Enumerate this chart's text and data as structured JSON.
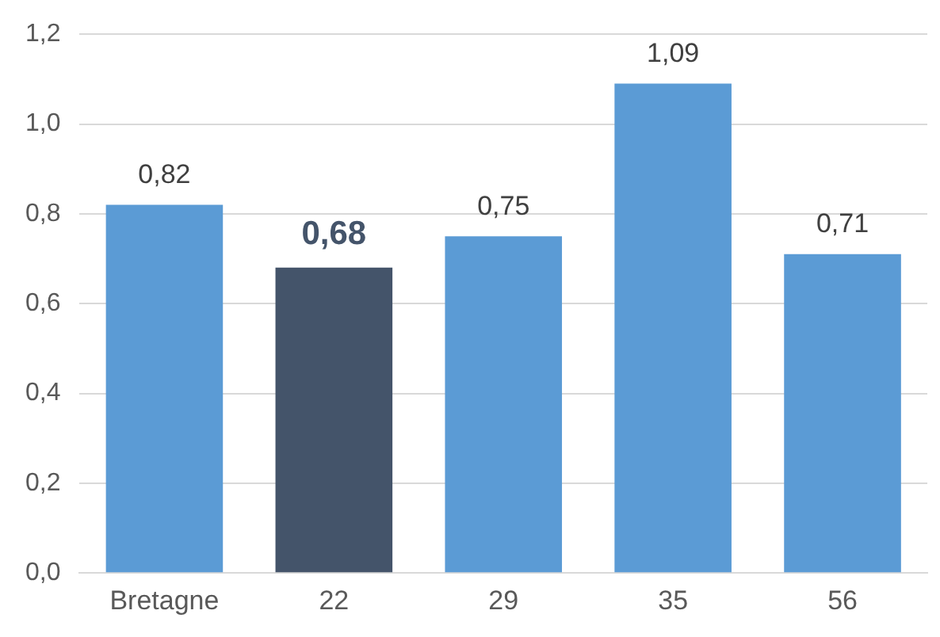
{
  "chart_data": {
    "type": "bar",
    "categories": [
      "Bretagne",
      "22",
      "29",
      "35",
      "56"
    ],
    "values": [
      0.82,
      0.68,
      0.75,
      1.09,
      0.71
    ],
    "colors": [
      "#5b9bd5",
      "#44546a",
      "#5b9bd5",
      "#5b9bd5",
      "#5b9bd5"
    ],
    "value_labels": [
      "0,82",
      "0,68",
      "0,75",
      "1,09",
      "0,71"
    ],
    "ylim": [
      0,
      1.2
    ],
    "yticks": [
      {
        "value": 0,
        "label": "0,0"
      },
      {
        "value": 0.2,
        "label": "0,2"
      },
      {
        "value": 0.4,
        "label": "0,4"
      },
      {
        "value": 0.6,
        "label": "0,6"
      },
      {
        "value": 0.8,
        "label": "0,8"
      },
      {
        "value": 1.0,
        "label": "1,0"
      },
      {
        "value": 1.2,
        "label": "1,2"
      }
    ],
    "grid": "y",
    "legend": false
  }
}
